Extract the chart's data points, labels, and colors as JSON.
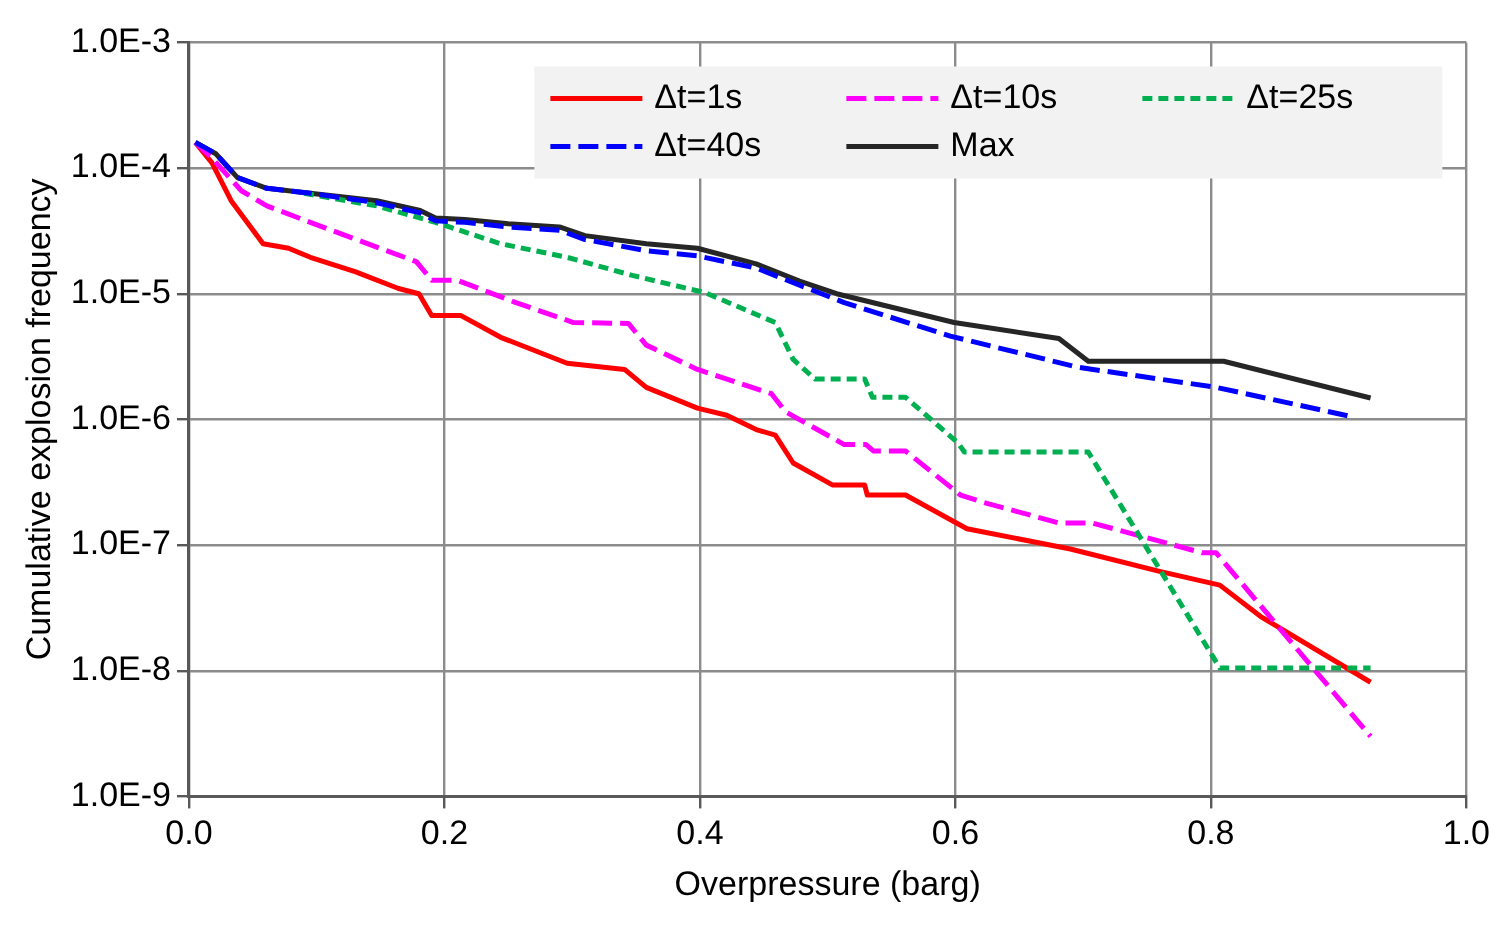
{
  "chart_data": {
    "type": "line",
    "xlabel": "Overpressure (barg)",
    "ylabel": "Cumulative explosion frequency",
    "log": "y",
    "grid": true,
    "legend": "top right",
    "marker": "none",
    "xlim": [
      0,
      1.0
    ],
    "xticks": [
      {
        "value": 0,
        "label": "0.0"
      },
      0.2,
      0.4,
      0.6,
      0.8,
      {
        "value": 1.0,
        "label": "1.0"
      }
    ],
    "ylim": [
      1e-09,
      0.001
    ],
    "yticks": [
      {
        "value": 1e-09,
        "label": "1.0E-9"
      },
      {
        "value": 1e-08,
        "label": "1.0E-8"
      },
      {
        "value": 1e-07,
        "label": "1.0E-7"
      },
      {
        "value": 1e-06,
        "label": "1.0E-6"
      },
      {
        "value": 1e-05,
        "label": "1.0E-5"
      },
      {
        "value": 0.0001,
        "label": "1.0E-4"
      },
      {
        "value": 0.001,
        "label": "1.0E-3"
      }
    ],
    "series": [
      {
        "name": "Δt=1s",
        "color": "#ff0000",
        "line_style": "solid",
        "x": [
          0.005,
          0.018,
          0.033,
          0.058,
          0.078,
          0.095,
          0.13,
          0.164,
          0.18,
          0.19,
          0.213,
          0.244,
          0.296,
          0.341,
          0.358,
          0.398,
          0.421,
          0.444,
          0.459,
          0.473,
          0.504,
          0.529,
          0.531,
          0.561,
          0.609,
          0.69,
          0.759,
          0.807,
          0.839,
          0.925
        ],
        "values": [
          0.00016,
          0.00011,
          5.5e-05,
          2.5e-05,
          2.3e-05,
          1.95e-05,
          1.5e-05,
          1.1e-05,
          1e-05,
          6.7e-06,
          6.7e-06,
          4.5e-06,
          2.8e-06,
          2.5e-06,
          1.8e-06,
          1.23e-06,
          1.08e-06,
          8.3e-07,
          7.5e-07,
          4.5e-07,
          3e-07,
          3e-07,
          2.5e-07,
          2.5e-07,
          1.35e-07,
          9.3e-08,
          6.2e-08,
          4.8e-08,
          2.7e-08,
          8.1e-09
        ]
      },
      {
        "name": "Δt=10s",
        "color": "#ff00ff",
        "line_style": "dashed",
        "x": [
          0.005,
          0.018,
          0.041,
          0.061,
          0.095,
          0.147,
          0.178,
          0.19,
          0.21,
          0.256,
          0.301,
          0.344,
          0.358,
          0.398,
          0.456,
          0.467,
          0.513,
          0.53,
          0.536,
          0.561,
          0.604,
          0.621,
          0.681,
          0.707,
          0.793,
          0.804,
          0.925
        ],
        "values": [
          0.00016,
          0.00012,
          6.6e-05,
          5e-05,
          3.7e-05,
          2.35e-05,
          1.8e-05,
          1.28e-05,
          1.28e-05,
          8.5e-06,
          5.9e-06,
          5.8e-06,
          3.9e-06,
          2.5e-06,
          1.6e-06,
          1.15e-06,
          6.3e-07,
          6.3e-07,
          5.6e-07,
          5.6e-07,
          2.5e-07,
          2.2e-07,
          1.5e-07,
          1.5e-07,
          8.7e-08,
          8.7e-08,
          3e-09
        ]
      },
      {
        "name": "Δt=25s",
        "color": "#00b050",
        "line_style": "dotted",
        "x": [
          0.09,
          0.147,
          0.193,
          0.244,
          0.296,
          0.347,
          0.404,
          0.459,
          0.473,
          0.49,
          0.529,
          0.535,
          0.561,
          0.602,
          0.607,
          0.704,
          0.807,
          0.925
        ],
        "values": [
          6.3e-05,
          5e-05,
          3.7e-05,
          2.5e-05,
          1.95e-05,
          1.4e-05,
          1.02e-05,
          5.9e-06,
          3e-06,
          2.1e-06,
          2.1e-06,
          1.5e-06,
          1.5e-06,
          6.5e-07,
          5.5e-07,
          5.5e-07,
          1.05e-08,
          1.05e-08
        ]
      },
      {
        "name": "Δt=40s",
        "color": "#0000ff",
        "line_style": "dashed",
        "x": [
          0.005,
          0.021,
          0.038,
          0.061,
          0.095,
          0.147,
          0.181,
          0.193,
          0.216,
          0.25,
          0.29,
          0.31,
          0.358,
          0.398,
          0.444,
          0.478,
          0.513,
          0.596,
          0.696,
          0.804,
          0.907
        ],
        "values": [
          0.00016,
          0.00013,
          8.4e-05,
          6.9e-05,
          6.3e-05,
          5.3e-05,
          4.4e-05,
          3.8e-05,
          3.7e-05,
          3.4e-05,
          3.2e-05,
          2.7e-05,
          2.2e-05,
          2e-05,
          1.6e-05,
          1.17e-05,
          8.5e-06,
          4.6e-06,
          2.6e-06,
          1.8e-06,
          1.07e-06
        ]
      },
      {
        "name": "Max",
        "color": "#262626",
        "line_style": "solid",
        "x": [
          0.005,
          0.021,
          0.038,
          0.061,
          0.095,
          0.147,
          0.181,
          0.193,
          0.216,
          0.25,
          0.29,
          0.31,
          0.358,
          0.398,
          0.444,
          0.478,
          0.507,
          0.599,
          0.681,
          0.704,
          0.81,
          0.925
        ],
        "values": [
          0.00016,
          0.00013,
          8.4e-05,
          6.9e-05,
          6.3e-05,
          5.5e-05,
          4.6e-05,
          4e-05,
          3.9e-05,
          3.6e-05,
          3.4e-05,
          2.9e-05,
          2.5e-05,
          2.3e-05,
          1.73e-05,
          1.26e-05,
          1e-05,
          5.9e-06,
          4.4e-06,
          2.9e-06,
          2.9e-06,
          1.48e-06
        ]
      }
    ]
  }
}
